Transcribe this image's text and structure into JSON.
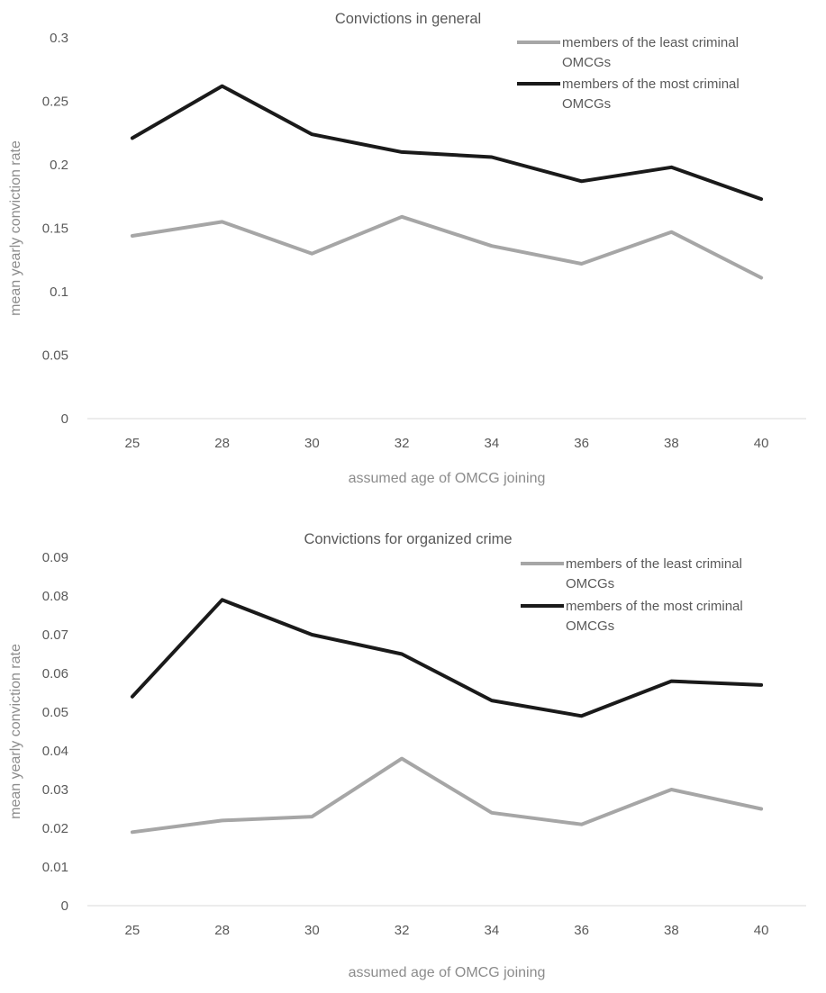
{
  "chart_data": [
    {
      "type": "line",
      "title": "Convictions in general",
      "xlabel": "assumed age of OMCG joining",
      "ylabel": "mean yearly conviction rate",
      "categories": [
        "25",
        "28",
        "30",
        "32",
        "34",
        "36",
        "38",
        "40"
      ],
      "ylim": [
        0,
        0.3
      ],
      "yticks": [
        "0",
        "0.05",
        "0.1",
        "0.15",
        "0.2",
        "0.25",
        "0.3"
      ],
      "grid": false,
      "legend_position": "top-right",
      "series": [
        {
          "name": "members of the least criminal OMCGs",
          "legend_lines": [
            "members of the least criminal",
            "OMCGs"
          ],
          "color": "#a6a6a6",
          "values": [
            0.144,
            0.155,
            0.13,
            0.159,
            0.136,
            0.122,
            0.147,
            0.111
          ]
        },
        {
          "name": "members of the most criminal OMCGs",
          "legend_lines": [
            "members of the most criminal",
            "OMCGs"
          ],
          "color": "#1a1a1a",
          "values": [
            0.221,
            0.262,
            0.224,
            0.21,
            0.206,
            0.187,
            0.198,
            0.173
          ]
        }
      ]
    },
    {
      "type": "line",
      "title": "Convictions for organized crime",
      "xlabel": "assumed age of OMCG joining",
      "ylabel": "mean yearly conviction rate",
      "categories": [
        "25",
        "28",
        "30",
        "32",
        "34",
        "36",
        "38",
        "40"
      ],
      "ylim": [
        0,
        0.09
      ],
      "yticks": [
        "0",
        "0.01",
        "0.02",
        "0.03",
        "0.04",
        "0.05",
        "0.06",
        "0.07",
        "0.08",
        "0.09"
      ],
      "grid": false,
      "legend_position": "top-right",
      "series": [
        {
          "name": "members of the least criminal OMCGs",
          "legend_lines": [
            "members of the least criminal",
            "OMCGs"
          ],
          "color": "#a6a6a6",
          "values": [
            0.019,
            0.022,
            0.023,
            0.038,
            0.024,
            0.021,
            0.03,
            0.025
          ]
        },
        {
          "name": "members of the most criminal OMCGs",
          "legend_lines": [
            "members of the most criminal",
            "OMCGs"
          ],
          "color": "#1a1a1a",
          "values": [
            0.054,
            0.079,
            0.07,
            0.065,
            0.053,
            0.049,
            0.058,
            0.057
          ]
        }
      ]
    }
  ]
}
